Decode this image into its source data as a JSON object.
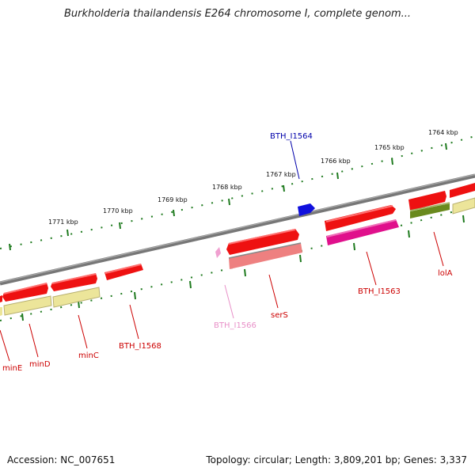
{
  "title": "Burkholderia thailandensis E264 chromosome I, complete genom...",
  "footer": {
    "accession": "Accession: NC_007651",
    "summary": "Topology: circular; Length: 3,809,201 bp; Genes: 3,337"
  },
  "scale_labels": [
    "1764 kbp",
    "1765 kbp",
    "1766 kbp",
    "1767 kbp",
    "1768 kbp",
    "1769 kbp",
    "1770 kbp",
    "1771 kbp"
  ],
  "gene_labels": [
    "BTH_I1564",
    "BTH_I1563",
    "lolA",
    "serS",
    "BTH_I1566",
    "BTH_I1568",
    "minC",
    "minD",
    "minE"
  ],
  "colors": {
    "backbone": "#7a7a7a",
    "tick": "#1e7a1e",
    "cds_red": "#ee1111",
    "rna_salmon": "#ee8080",
    "gene_khaki": "#ece59a",
    "gene_magenta": "#e0108c",
    "gene_olive": "#6a8a1e",
    "gene_blue": "#1010dd",
    "gene_pink": "#f0a0d0",
    "label_red": "#cc0000",
    "label_blue": "#0000aa",
    "label_pink": "#e890c8"
  }
}
